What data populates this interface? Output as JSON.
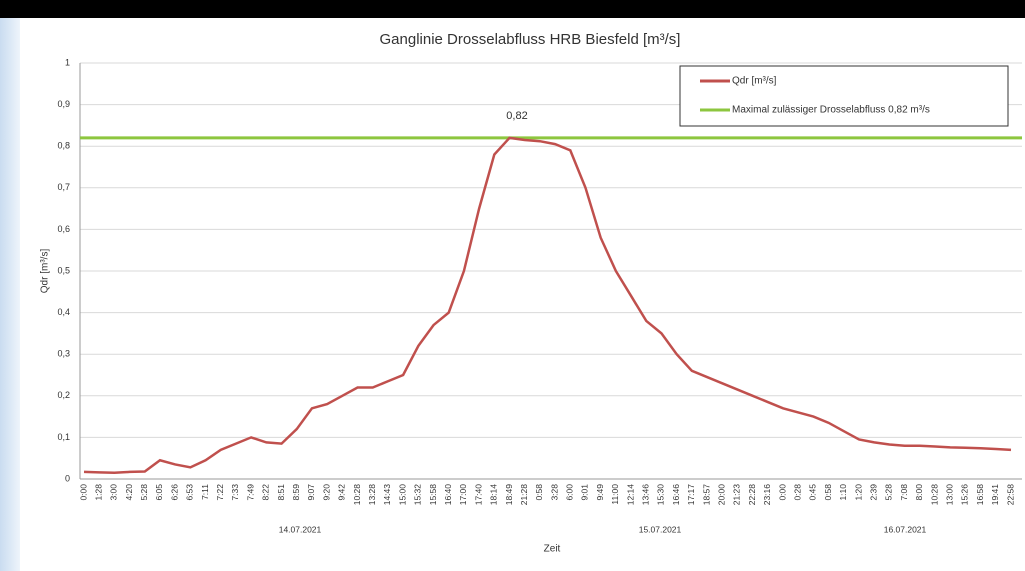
{
  "chart_data": {
    "type": "line",
    "title": "Ganglinie Drosselabfluss HRB Biesfeld [m³/s]",
    "x_label": "Zeit",
    "y_label": "Qdr [m³/s]",
    "categories": [
      "0:00",
      "1:28",
      "3:00",
      "4:20",
      "5:28",
      "6:05",
      "6:26",
      "6:53",
      "7:11",
      "7:22",
      "7:33",
      "7:49",
      "8:22",
      "8:51",
      "8:59",
      "9:07",
      "9:20",
      "9:42",
      "10:28",
      "13:28",
      "14:43",
      "15:00",
      "15:32",
      "15:58",
      "16:40",
      "17:00",
      "17:40",
      "18:14",
      "18:49",
      "21:28",
      "0:58",
      "3:28",
      "6:00",
      "9:01",
      "9:49",
      "11:00",
      "12:14",
      "13:46",
      "15:30",
      "16:46",
      "17:17",
      "18:57",
      "20:00",
      "21:23",
      "22:28",
      "23:16",
      "0:00",
      "0:28",
      "0:45",
      "0:58",
      "1:10",
      "1:20",
      "2:39",
      "5:28",
      "7:08",
      "8:00",
      "10:28",
      "13:00",
      "15:26",
      "16:58",
      "19:41",
      "22:58"
    ],
    "date_labels": [
      "14.07.2021",
      "15.07.2021",
      "16.07.2021"
    ],
    "series": [
      {
        "name": "Qdr [m³/s]",
        "color": "#c0504d",
        "values": [
          0.017,
          0.016,
          0.015,
          0.017,
          0.018,
          0.045,
          0.035,
          0.028,
          0.045,
          0.07,
          0.085,
          0.1,
          0.088,
          0.085,
          0.12,
          0.17,
          0.18,
          0.2,
          0.22,
          0.22,
          0.235,
          0.25,
          0.32,
          0.37,
          0.4,
          0.5,
          0.65,
          0.78,
          0.82,
          0.815,
          0.812,
          0.805,
          0.79,
          0.7,
          0.58,
          0.5,
          0.44,
          0.38,
          0.35,
          0.3,
          0.26,
          0.245,
          0.23,
          0.215,
          0.2,
          0.185,
          0.17,
          0.16,
          0.15,
          0.135,
          0.115,
          0.095,
          0.088,
          0.083,
          0.08,
          0.08,
          0.078,
          0.076,
          0.075,
          0.074,
          0.072,
          0.07
        ]
      }
    ],
    "reference_line": {
      "name": "Maximal zulässiger Drosselabfluss 0,82 m³/s",
      "color": "#8dc63f",
      "value": 0.82
    },
    "annotation": {
      "value": 0.82,
      "label": "0,82"
    },
    "ylim": [
      0,
      1
    ],
    "yticks": [
      0,
      {
        "value": 0.1,
        "label": "0,1"
      },
      {
        "value": 0.2,
        "label": "0,2"
      },
      {
        "value": 0.3,
        "label": "0,3"
      },
      {
        "value": 0.4,
        "label": "0,4"
      },
      {
        "value": 0.5,
        "label": "0,5"
      },
      {
        "value": 0.6,
        "label": "0,6"
      },
      {
        "value": 0.7,
        "label": "0,7"
      },
      {
        "value": 0.8,
        "label": "0,8"
      },
      {
        "value": 0.9,
        "label": "0,9"
      },
      1
    ],
    "grid": true,
    "legend": "top-right"
  }
}
